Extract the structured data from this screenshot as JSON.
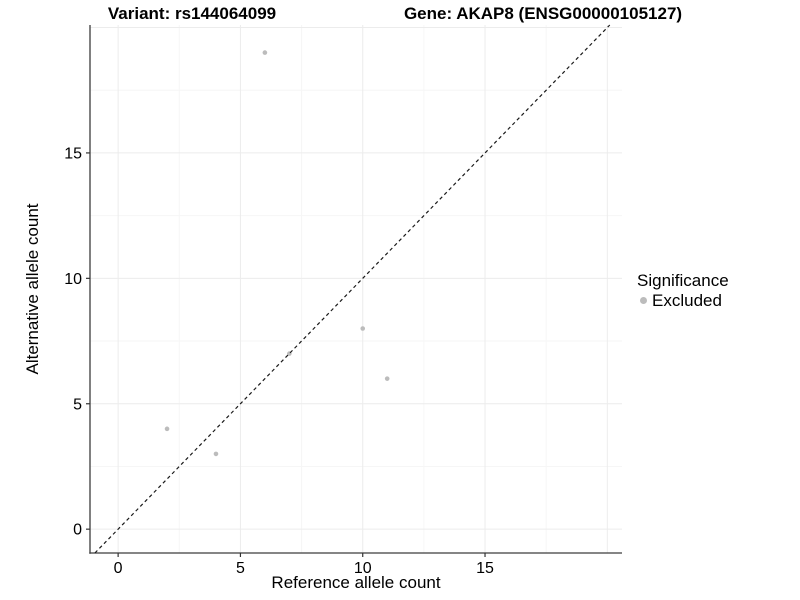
{
  "legend": {
    "title": "Significance",
    "items": [
      {
        "label": "Excluded",
        "color": "#bcbcbc",
        "marker": "circle-icon"
      }
    ]
  },
  "chart_data": {
    "type": "scatter",
    "title_left": "Variant: rs144064099",
    "title_right": "Gene: AKAP8 (ENSG00000105127)",
    "xlabel": "Reference allele count",
    "ylabel": "Alternative allele count",
    "xlim": [
      -1.15,
      20.6
    ],
    "ylim": [
      -0.95,
      20.1
    ],
    "x_ticks": [
      0,
      5,
      10,
      15
    ],
    "y_ticks": [
      0,
      5,
      10,
      15
    ],
    "x_major_gridlines": [
      0,
      5,
      10,
      15,
      20
    ],
    "y_major_gridlines": [
      0,
      5,
      10,
      15,
      20
    ],
    "x_minor_gridlines": [
      2.5,
      7.5,
      12.5,
      17.5
    ],
    "y_minor_gridlines": [
      2.5,
      7.5,
      12.5,
      17.5
    ],
    "grid": true,
    "legend_position": "right",
    "series": [
      {
        "name": "Excluded",
        "color": "#bcbcbc",
        "marker_radius": 2.3,
        "points": [
          [
            2,
            4
          ],
          [
            4,
            3
          ],
          [
            6,
            19
          ],
          [
            7,
            7
          ],
          [
            10,
            8
          ],
          [
            11,
            6
          ]
        ]
      }
    ],
    "reference_line": {
      "kind": "identity",
      "equation": "y = x",
      "style": "dashed",
      "color": "#1a1a1a"
    },
    "colors": {
      "grid_major": "#ececec",
      "grid_minor": "#f6f6f6",
      "axis": "#3c3c3c",
      "tick_mark": "#333333",
      "tick_text": "#000000"
    }
  }
}
